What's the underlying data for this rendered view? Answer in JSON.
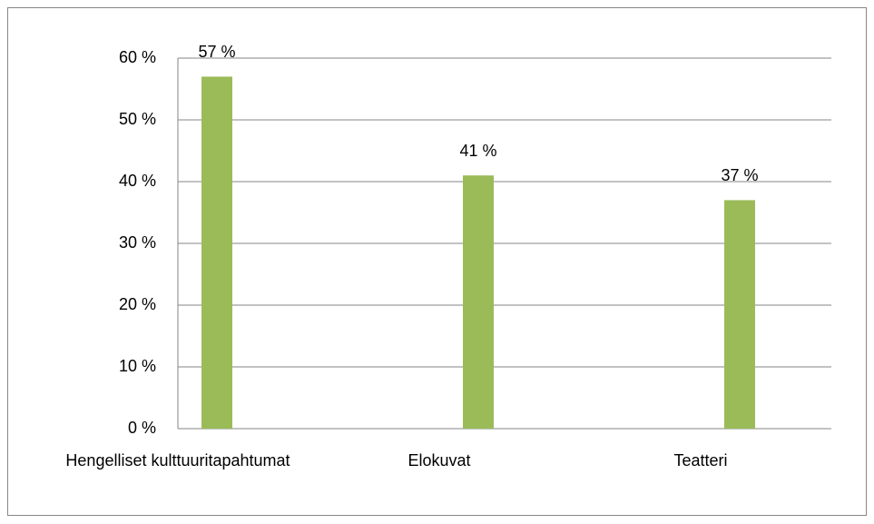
{
  "chart_data": {
    "type": "bar",
    "categories": [
      "Hengelliset kulttuuritapahtumat",
      "Elokuvat",
      "Teatteri"
    ],
    "values": [
      57,
      41,
      37
    ],
    "value_labels": [
      "57 %",
      "41 %",
      "37 %"
    ],
    "color": "#9bbb59",
    "ylim": [
      0,
      60
    ],
    "yticks": [
      {
        "value": 0,
        "label": "0 %"
      },
      {
        "value": 10,
        "label": "10 %"
      },
      {
        "value": 20,
        "label": "20 %"
      },
      {
        "value": 30,
        "label": "30 %"
      },
      {
        "value": 40,
        "label": "40 %"
      },
      {
        "value": 50,
        "label": "50 %"
      },
      {
        "value": 60,
        "label": "60 %"
      }
    ],
    "grid": true
  }
}
